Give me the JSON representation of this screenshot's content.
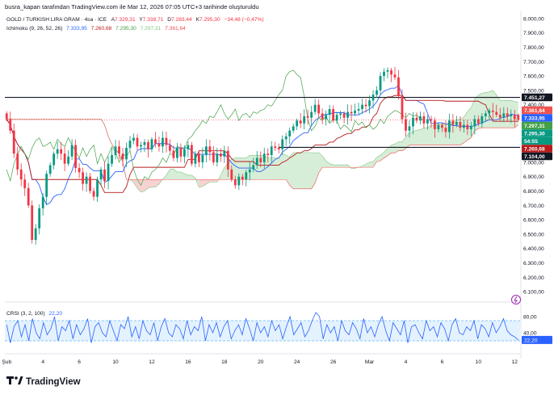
{
  "header": {
    "published": "busra_kapan tarafından TradingView.com ile Mar 12, 2026 07:05 UTC+3 tarihinde oluşturuldu"
  },
  "legend": {
    "symbol": "GOLD / TURKISH LIRA GRAM · 4sa · ICE",
    "o_label": "A",
    "o_value": "7.329,31",
    "h_label": "Y",
    "h_value": "7.338,71",
    "l_label": "D",
    "l_value": "7.283,44",
    "c_label": "K",
    "c_value": "7.295,30",
    "change": "−34,48 (−0,47%)",
    "ichimoku_name": "Ichimoku (9, 26, 52, 26)",
    "ichimoku_values": [
      "7.333,95",
      "7.260,68",
      "7.295,30",
      "7.297,31",
      "7.361,64"
    ]
  },
  "crsi_legend": {
    "name": "CRSI (3, 2, 100)",
    "value": "22,20"
  },
  "colors": {
    "up": "#089981",
    "down": "#f23645",
    "tenkan": "#2962ff",
    "kijun": "#b71c1c",
    "chikou": "#43a047",
    "cloud_green": "#a5d6a7",
    "cloud_red": "#ef9a9a",
    "crsi": "#2962ff",
    "crsi_band": "#2196f3",
    "axis_text": "#131722"
  },
  "chart_data": [
    {
      "type": "candlestick",
      "title": "GOLD / TURKISH LIRA GRAM",
      "interval": "4sa",
      "exchange": "ICE",
      "ylim": [
        6050,
        8050
      ],
      "y_ticks": [
        "8.000,00",
        "7.900,00",
        "7.800,00",
        "7.700,00",
        "7.600,00",
        "7.500,00",
        "7.400,00",
        "7.300,00",
        "7.200,00",
        "7.100,00",
        "7.000,00",
        "6.900,00",
        "6.800,00",
        "6.700,00",
        "6.600,00",
        "6.500,00",
        "6.400,00",
        "6.300,00",
        "6.200,00",
        "6.100,00"
      ],
      "y_tick_values": [
        8000,
        7900,
        7800,
        7700,
        7600,
        7500,
        7400,
        7300,
        7200,
        7100,
        7000,
        6900,
        6800,
        6700,
        6600,
        6500,
        6400,
        6300,
        6200,
        6100
      ],
      "x_labels": [
        "Şub",
        "4",
        "6",
        "10",
        "12",
        "16",
        "18",
        "20",
        "24",
        "26",
        "Mar",
        "4",
        "6",
        "10",
        "12"
      ],
      "x_label_positions": [
        0,
        10,
        20,
        30,
        40,
        50,
        60,
        70,
        80,
        90,
        100,
        110,
        120,
        130,
        140
      ],
      "horizontal_lines": [
        {
          "value": 7451.27,
          "label": "7.451,27"
        },
        {
          "value": 7104.0,
          "label": "7.104,00"
        }
      ],
      "price_labels": [
        {
          "value": 7451.27,
          "label": "7.451,27",
          "color": "#131722"
        },
        {
          "value": 7361.64,
          "label": "7.361,64",
          "color": "#ef5350"
        },
        {
          "value": 7333.95,
          "label": "7.333,95",
          "color": "#2962ff"
        },
        {
          "value": 7297.31,
          "label": "7.297,31",
          "color": "#43a047"
        },
        {
          "value": 7295.3,
          "label": "7.295,30",
          "color": "#089981"
        },
        {
          "value": 7295.3,
          "label": "54:55",
          "color": "#089981"
        },
        {
          "value": 7260.68,
          "label": "7.260,68",
          "color": "#b71c1c"
        },
        {
          "value": 7104.0,
          "label": "7.104,00",
          "color": "#131722"
        }
      ],
      "current_price": 7295.3,
      "closes": [
        7300,
        7220,
        7060,
        6950,
        6880,
        6820,
        6700,
        6460,
        6540,
        6680,
        6760,
        6920,
        6980,
        7060,
        7090,
        7060,
        6990,
        7040,
        7120,
        6960,
        6930,
        6850,
        6900,
        6800,
        6760,
        6880,
        6950,
        6870,
        6990,
        7050,
        7110,
        7060,
        7020,
        7100,
        7150,
        7170,
        7110,
        7120,
        7140,
        7090,
        7160,
        7130,
        7110,
        7170,
        7120,
        7080,
        7030,
        7100,
        7040,
        7090,
        7120,
        6990,
        7060,
        7000,
        7050,
        7110,
        7070,
        7000,
        7060,
        7040,
        7080,
        6950,
        6880,
        6840,
        6900,
        6880,
        6930,
        6950,
        6980,
        7030,
        7000,
        7060,
        7050,
        7110,
        7100,
        7090,
        7160,
        7180,
        7220,
        7250,
        7290,
        7270,
        7320,
        7310,
        7350,
        7400,
        7340,
        7300,
        7330,
        7370,
        7290,
        7330,
        7340,
        7310,
        7350,
        7340,
        7360,
        7370,
        7400,
        7390,
        7430,
        7470,
        7500,
        7600,
        7630,
        7640,
        7610,
        7590,
        7460,
        7300,
        7220,
        7250,
        7310,
        7290,
        7320,
        7270,
        7300,
        7290,
        7230,
        7260,
        7240,
        7210,
        7290,
        7260,
        7280,
        7240,
        7260,
        7230,
        7250,
        7300,
        7270,
        7320,
        7340,
        7360,
        7350,
        7330,
        7310,
        7340,
        7320,
        7330,
        7300,
        7295.3
      ],
      "ohlc_last": {
        "open": 7329.31,
        "high": 7338.71,
        "low": 7283.44,
        "close": 7295.3
      },
      "ichimoku": {
        "tenkan": 7333.95,
        "kijun": 7260.68,
        "chikou": 7295.3,
        "senkou_a": 7297.31,
        "senkou_b": 7361.64
      }
    },
    {
      "type": "line",
      "title": "CRSI (3, 2, 100)",
      "ylim": [
        0,
        100
      ],
      "y_ticks": [
        "80,00",
        "40,00",
        "20,00"
      ],
      "y_tick_values": [
        80,
        40,
        20
      ],
      "band": [
        20,
        70
      ],
      "current_label": "22,20",
      "values": [
        60,
        15,
        55,
        70,
        30,
        60,
        20,
        75,
        40,
        25,
        65,
        35,
        50,
        80,
        20,
        55,
        45,
        70,
        25,
        60,
        35,
        50,
        75,
        15,
        55,
        65,
        40,
        30,
        70,
        45,
        20,
        60,
        50,
        80,
        30,
        55,
        25,
        70,
        45,
        35,
        65,
        20,
        55,
        75,
        40,
        30,
        60,
        50,
        25,
        70,
        35,
        55,
        45,
        80,
        20,
        60,
        40,
        65,
        30,
        55,
        70,
        25,
        45,
        60,
        35,
        75,
        50,
        20,
        65,
        40,
        55,
        30,
        70,
        45,
        60,
        25,
        55,
        80,
        35,
        50,
        65,
        30,
        45,
        70,
        90,
        80,
        25,
        60,
        40,
        55,
        20,
        70,
        45,
        35,
        65,
        50,
        25,
        75,
        40,
        55,
        30,
        60,
        80,
        45,
        20,
        65,
        50,
        35,
        70,
        15,
        55,
        60,
        40,
        25,
        70,
        45,
        55,
        30,
        65,
        50,
        20,
        60,
        75,
        40,
        35,
        55,
        45,
        70,
        25,
        60,
        50,
        30,
        65,
        40,
        55,
        75,
        45,
        35,
        30,
        22.2
      ]
    }
  ],
  "branding": {
    "logo_text": "TradingView"
  }
}
